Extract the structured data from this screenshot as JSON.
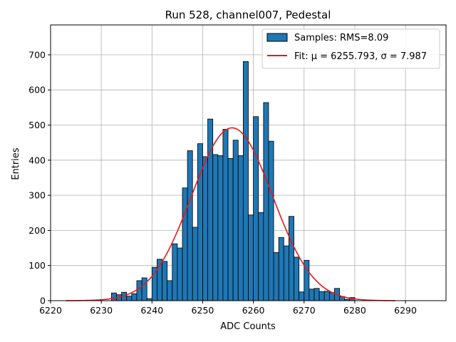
{
  "chart_data": {
    "type": "bar",
    "title": "Run 528, channel007, Pedestal",
    "xlabel": "ADC Counts",
    "ylabel": "Entries",
    "xlim": [
      6220,
      6298
    ],
    "ylim": [
      0,
      785
    ],
    "xticks": [
      "6220",
      "6230",
      "6240",
      "6250",
      "6260",
      "6270",
      "6280",
      "6290"
    ],
    "xtick_values": [
      6220,
      6230,
      6240,
      6250,
      6260,
      6270,
      6280,
      6290
    ],
    "yticks": [
      "0",
      "100",
      "200",
      "300",
      "400",
      "500",
      "600",
      "700"
    ],
    "ytick_values": [
      0,
      100,
      200,
      300,
      400,
      500,
      600,
      700
    ],
    "grid": true,
    "legend_position": "top-right",
    "histogram": {
      "name": "Samples: RMS=8.09",
      "color": "#1f77b4",
      "edge_color": "#000000",
      "bin_start": 6232,
      "bin_width": 1,
      "counts": [
        22,
        17,
        24,
        13,
        20,
        57,
        65,
        6,
        95,
        118,
        112,
        57,
        162,
        150,
        321,
        427,
        209,
        447,
        410,
        517,
        416,
        413,
        488,
        405,
        457,
        413,
        681,
        244,
        524,
        251,
        564,
        454,
        137,
        180,
        156,
        240,
        124,
        25,
        115,
        33,
        35,
        26,
        27,
        23,
        35,
        12,
        4,
        9
      ]
    },
    "fit": {
      "name": "Fit: μ = 6255.793, σ = 7.987",
      "color": "#e31a1c",
      "mu": 6255.793,
      "sigma": 7.987,
      "amplitude": 492,
      "x_range": [
        6223,
        6288
      ]
    }
  }
}
